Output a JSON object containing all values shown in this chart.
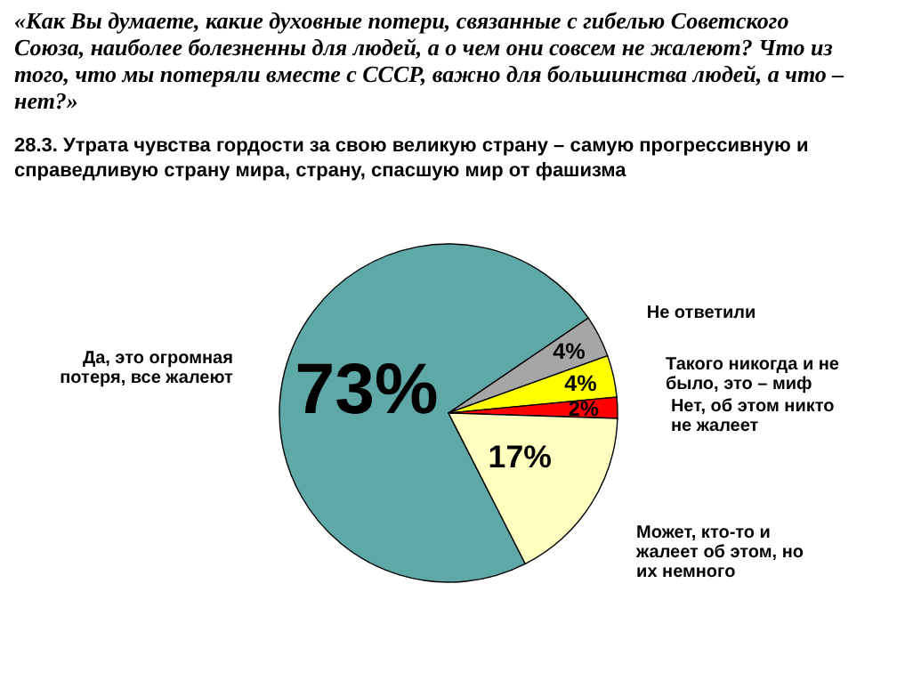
{
  "chart_data": {
    "type": "pie",
    "title": "«Как Вы думаете, какие духовные потери, связанные с гибелью Советского Союза, наиболее болезненны для людей, а о чем они совсем не жалеют? Что из того, что мы потеряли вместе с СССР, важно для большинства людей, а что – нет?»",
    "subtitle": "28.3. Утрата чувства гордости за свою великую страну – самую прогрессивную и справедливую страну мира, страну, спасшую мир от фашизма",
    "categories": [
      "Да, это огромная потеря, все жалеют",
      "Не ответили",
      "Такого никогда и не было, это – миф",
      "Нет, об этом никто не жалеет",
      "Может, кто-то и жалеет об этом, но их немного"
    ],
    "values": [
      73,
      4,
      4,
      2,
      17
    ],
    "colors": [
      "#5fa8a8",
      "#a6a6a6",
      "#ffff00",
      "#ff0000",
      "#ffffc0"
    ],
    "value_labels": [
      "73%",
      "4%",
      "4%",
      "2%",
      "17%"
    ],
    "legend": false
  }
}
